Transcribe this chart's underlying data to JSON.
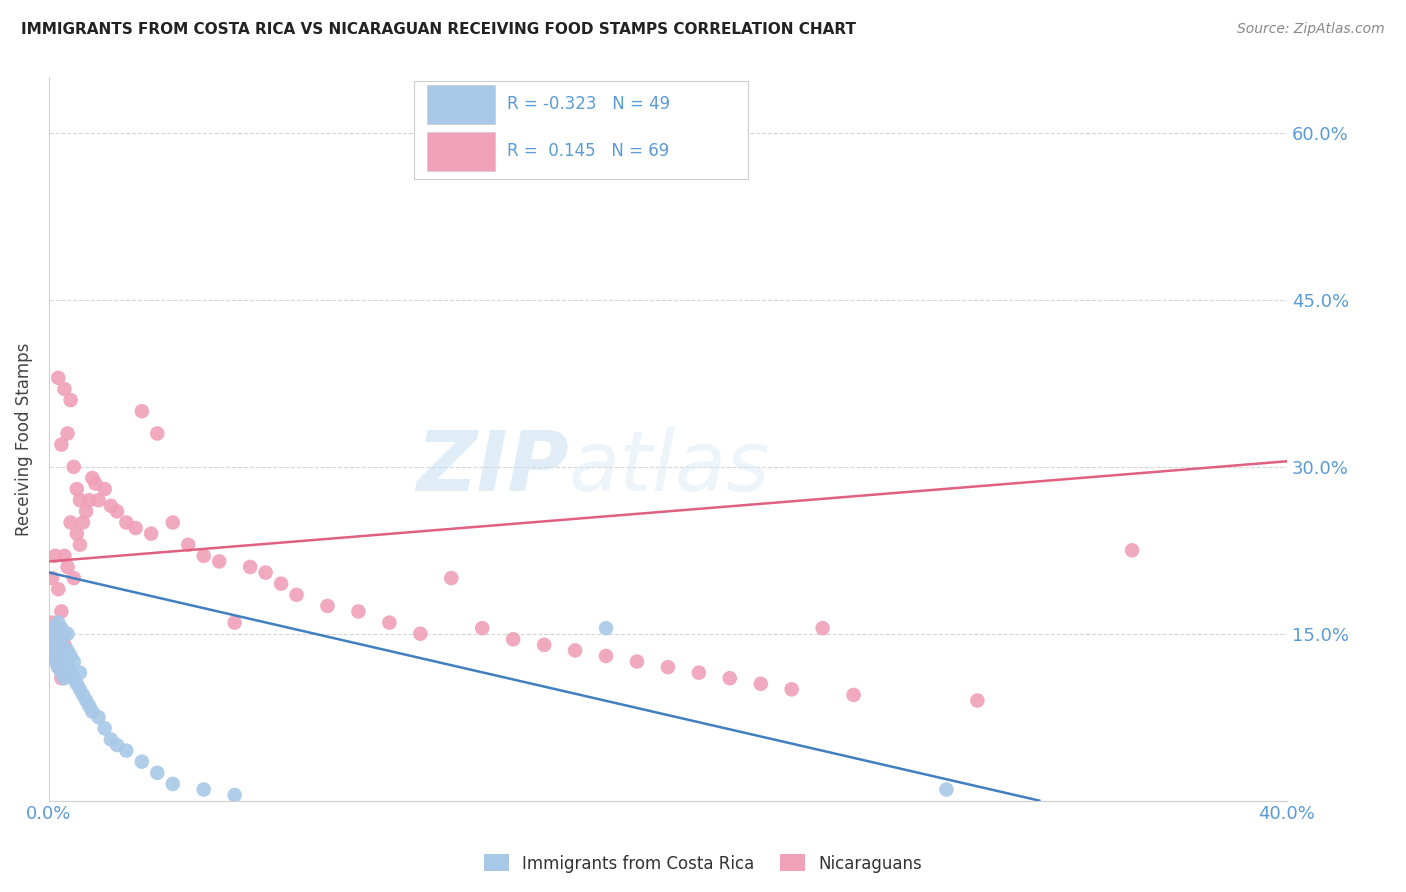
{
  "title": "IMMIGRANTS FROM COSTA RICA VS NICARAGUAN RECEIVING FOOD STAMPS CORRELATION CHART",
  "source": "Source: ZipAtlas.com",
  "ylabel": "Receiving Food Stamps",
  "xlim": [
    0.0,
    0.4
  ],
  "ylim": [
    0.0,
    0.65
  ],
  "yticks": [
    0.0,
    0.15,
    0.3,
    0.45,
    0.6
  ],
  "xticks": [
    0.0,
    0.1,
    0.2,
    0.3,
    0.4
  ],
  "legend_line1": "R = -0.323   N = 49",
  "legend_line2": "R =  0.145   N = 69",
  "color_blue": "#a8c8e8",
  "color_pink": "#f0a0b8",
  "color_blue_line": "#4080c0",
  "color_pink_line": "#e06080",
  "color_axis_label": "#5b9bd5",
  "watermark_zip": "ZIP",
  "watermark_atlas": "atlas",
  "blue_trend_x": [
    0.0,
    0.32
  ],
  "blue_trend_y": [
    0.205,
    0.0
  ],
  "pink_trend_x": [
    0.0,
    0.4
  ],
  "pink_trend_y": [
    0.215,
    0.305
  ],
  "blue_x": [
    0.001,
    0.001,
    0.001,
    0.001,
    0.001,
    0.001,
    0.002,
    0.002,
    0.002,
    0.002,
    0.002,
    0.003,
    0.003,
    0.003,
    0.003,
    0.003,
    0.004,
    0.004,
    0.004,
    0.004,
    0.005,
    0.005,
    0.005,
    0.006,
    0.006,
    0.006,
    0.007,
    0.007,
    0.008,
    0.008,
    0.009,
    0.01,
    0.01,
    0.011,
    0.012,
    0.013,
    0.014,
    0.016,
    0.018,
    0.02,
    0.022,
    0.025,
    0.03,
    0.035,
    0.04,
    0.05,
    0.06,
    0.18,
    0.29
  ],
  "blue_y": [
    0.13,
    0.135,
    0.14,
    0.145,
    0.15,
    0.155,
    0.125,
    0.13,
    0.135,
    0.145,
    0.155,
    0.12,
    0.13,
    0.14,
    0.15,
    0.16,
    0.115,
    0.125,
    0.14,
    0.155,
    0.11,
    0.13,
    0.15,
    0.12,
    0.135,
    0.15,
    0.115,
    0.13,
    0.11,
    0.125,
    0.105,
    0.1,
    0.115,
    0.095,
    0.09,
    0.085,
    0.08,
    0.075,
    0.065,
    0.055,
    0.05,
    0.045,
    0.035,
    0.025,
    0.015,
    0.01,
    0.005,
    0.155,
    0.01
  ],
  "pink_x": [
    0.001,
    0.001,
    0.001,
    0.002,
    0.002,
    0.002,
    0.003,
    0.003,
    0.003,
    0.003,
    0.004,
    0.004,
    0.004,
    0.005,
    0.005,
    0.005,
    0.006,
    0.006,
    0.007,
    0.007,
    0.008,
    0.008,
    0.009,
    0.009,
    0.01,
    0.01,
    0.011,
    0.012,
    0.013,
    0.014,
    0.015,
    0.016,
    0.018,
    0.02,
    0.022,
    0.025,
    0.028,
    0.03,
    0.033,
    0.035,
    0.04,
    0.045,
    0.05,
    0.055,
    0.06,
    0.065,
    0.07,
    0.075,
    0.08,
    0.09,
    0.1,
    0.11,
    0.12,
    0.13,
    0.14,
    0.15,
    0.16,
    0.17,
    0.18,
    0.19,
    0.2,
    0.21,
    0.22,
    0.23,
    0.24,
    0.25,
    0.26,
    0.3,
    0.35
  ],
  "pink_y": [
    0.145,
    0.16,
    0.2,
    0.13,
    0.155,
    0.22,
    0.12,
    0.15,
    0.19,
    0.38,
    0.11,
    0.17,
    0.32,
    0.14,
    0.22,
    0.37,
    0.21,
    0.33,
    0.25,
    0.36,
    0.2,
    0.3,
    0.24,
    0.28,
    0.23,
    0.27,
    0.25,
    0.26,
    0.27,
    0.29,
    0.285,
    0.27,
    0.28,
    0.265,
    0.26,
    0.25,
    0.245,
    0.35,
    0.24,
    0.33,
    0.25,
    0.23,
    0.22,
    0.215,
    0.16,
    0.21,
    0.205,
    0.195,
    0.185,
    0.175,
    0.17,
    0.16,
    0.15,
    0.2,
    0.155,
    0.145,
    0.14,
    0.135,
    0.13,
    0.125,
    0.12,
    0.115,
    0.11,
    0.105,
    0.1,
    0.155,
    0.095,
    0.09,
    0.225
  ]
}
